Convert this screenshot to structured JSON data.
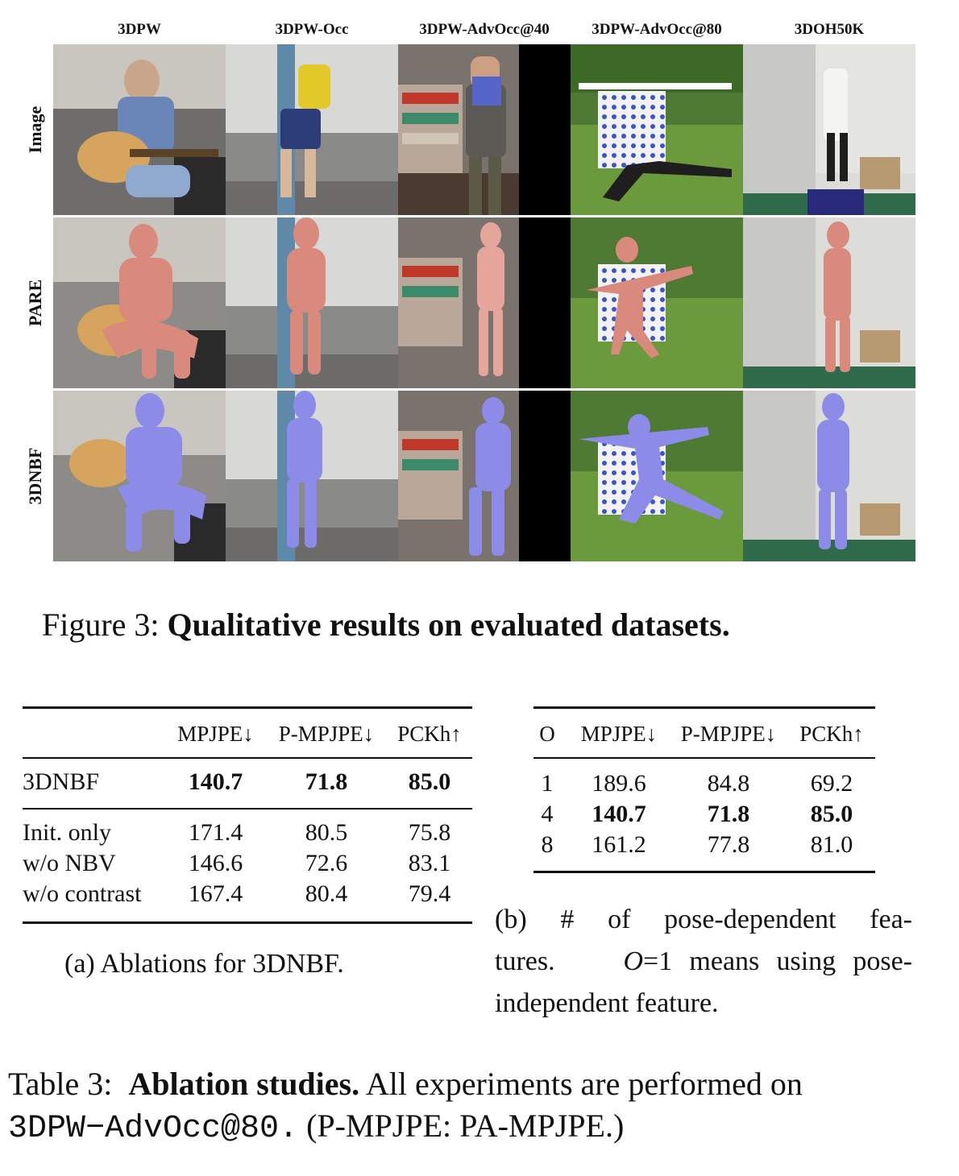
{
  "figure": {
    "columns": [
      "3DPW",
      "3DPW-Occ",
      "3DPW-AdvOcc@40",
      "3DPW-AdvOcc@80",
      "3DOH50K"
    ],
    "rows": [
      "Image",
      "PARE",
      "3DNBF"
    ],
    "caption_prefix": "Figure 3:",
    "caption_bold": "Qualitative results on evaluated datasets.",
    "colors": {
      "pare_mesh": "#d98a7c",
      "nbf_mesh": "#8c8ce8",
      "occluder_dots": "#3a55c8"
    }
  },
  "table_a": {
    "headers": [
      "",
      "MPJPE↓",
      "P-MPJPE↓",
      "PCKh↑"
    ],
    "main_row": {
      "name": "3DNBF",
      "values": [
        "140.7",
        "71.8",
        "85.0"
      ]
    },
    "rows": [
      {
        "name": "Init. only",
        "values": [
          "171.4",
          "80.5",
          "75.8"
        ]
      },
      {
        "name": "w/o NBV",
        "values": [
          "146.6",
          "72.6",
          "83.1"
        ]
      },
      {
        "name": "w/o contrast",
        "values": [
          "167.4",
          "80.4",
          "79.4"
        ]
      }
    ],
    "caption": "(a)  Ablations for 3DNBF."
  },
  "table_b": {
    "headers": [
      "O",
      "MPJPE↓",
      "P-MPJPE↓",
      "PCKh↑"
    ],
    "rows": [
      {
        "o": "1",
        "values": [
          "189.6",
          "84.8",
          "69.2"
        ],
        "bold": false
      },
      {
        "o": "4",
        "values": [
          "140.7",
          "71.8",
          "85.0"
        ],
        "bold": true
      },
      {
        "o": "8",
        "values": [
          "161.2",
          "77.8",
          "81.0"
        ],
        "bold": false
      }
    ],
    "caption_part1": "(b) # of pose-dependent fea-tures.",
    "caption_math": "O",
    "caption_part2": "=1 means using pose-independent feature."
  },
  "table_caption": {
    "prefix": "Table 3:",
    "bold": "Ablation studies.",
    "text": "All experiments are performed on",
    "mono": "3DPW−AdvOcc@80.",
    "tail": "(P-MPJPE: PA-MPJPE.)"
  }
}
